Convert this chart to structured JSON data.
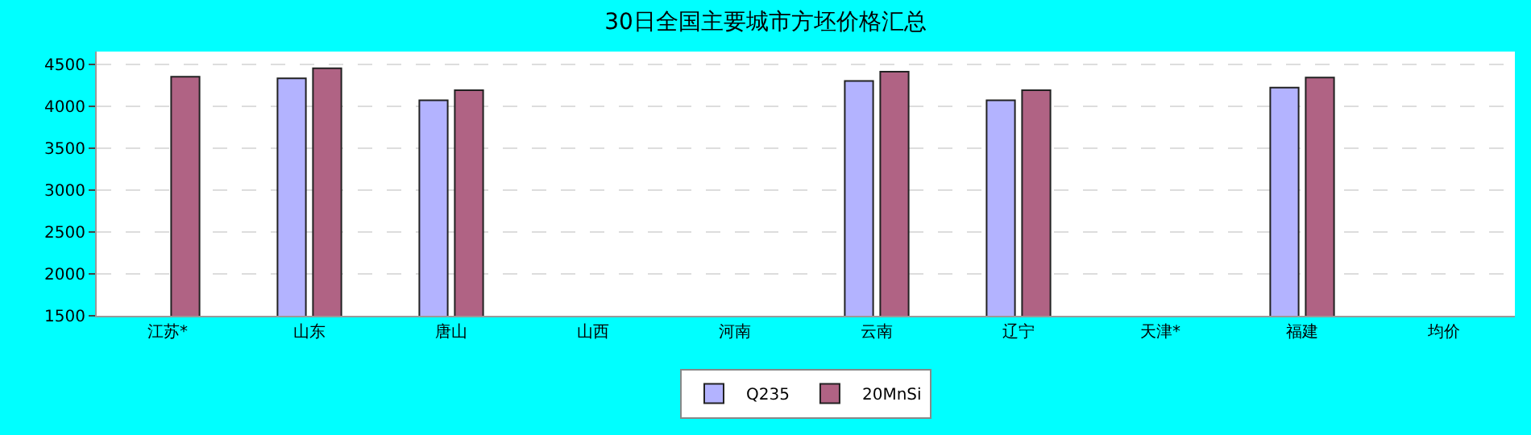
{
  "chart_data": {
    "type": "bar",
    "title": "30日全国主要城市方坯价格汇总",
    "categories": [
      "江苏*",
      "山东",
      "唐山",
      "山西",
      "河南",
      "云南",
      "辽宁",
      "天津*",
      "福建",
      "均价"
    ],
    "series": [
      {
        "name": "Q235",
        "color": "#b3b3ff",
        "values": [
          null,
          4330,
          4070,
          null,
          null,
          4300,
          4070,
          null,
          4220,
          null
        ]
      },
      {
        "name": "20MnSi",
        "color": "#b06384",
        "values": [
          4350,
          4450,
          4190,
          null,
          null,
          4410,
          4190,
          null,
          4340,
          null
        ]
      }
    ],
    "ylim": [
      1500,
      4650
    ],
    "yticks": [
      1500,
      2000,
      2500,
      3000,
      3500,
      4000,
      4500
    ],
    "grid": "y",
    "legend": "bottom"
  }
}
